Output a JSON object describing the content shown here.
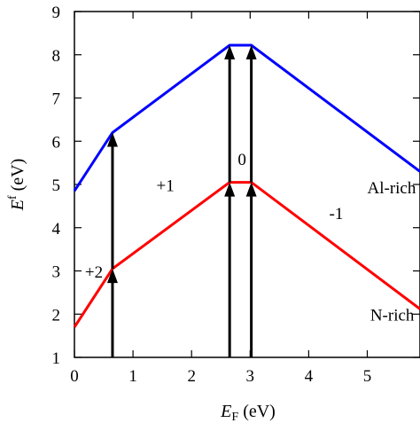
{
  "chart_data": {
    "type": "line",
    "xlabel_main": "E",
    "xlabel_sub": "F",
    "xlabel_unit": " (eV)",
    "ylabel_main": "E",
    "ylabel_sup": "f",
    "ylabel_unit": " (eV)",
    "xlim": [
      0,
      5.9
    ],
    "ylim": [
      1,
      9
    ],
    "xticks": [
      0,
      1,
      2,
      3,
      4,
      5
    ],
    "yticks": [
      1,
      2,
      3,
      4,
      5,
      6,
      7,
      8,
      9
    ],
    "grid": false,
    "series": [
      {
        "name": "Al-rich",
        "color": "#0000ff",
        "x": [
          0,
          0.65,
          2.65,
          3.02,
          5.9
        ],
        "y": [
          4.85,
          6.2,
          8.22,
          8.22,
          5.3
        ]
      },
      {
        "name": "N-rich",
        "color": "#ff0000",
        "x": [
          0,
          0.65,
          2.65,
          3.02,
          5.9
        ],
        "y": [
          1.7,
          3.05,
          5.05,
          5.05,
          2.12
        ]
      }
    ],
    "arrows": [
      {
        "x": 0.65,
        "y_from": 1,
        "y_to": 3.05
      },
      {
        "x": 0.65,
        "y_from": 3.05,
        "y_to": 6.2
      },
      {
        "x": 2.65,
        "y_from": 1,
        "y_to": 5.05
      },
      {
        "x": 2.65,
        "y_from": 5.05,
        "y_to": 8.22
      },
      {
        "x": 3.02,
        "y_from": 1,
        "y_to": 5.05
      },
      {
        "x": 3.02,
        "y_from": 5.05,
        "y_to": 8.22
      }
    ],
    "annotations": [
      {
        "text": "+2",
        "x": 0.18,
        "y": 2.85
      },
      {
        "text": "+1",
        "x": 1.4,
        "y": 4.85
      },
      {
        "text": "0",
        "x": 2.79,
        "y": 5.45
      },
      {
        "text": "-1",
        "x": 4.35,
        "y": 4.2
      },
      {
        "text": "Al-rich",
        "x": 5.0,
        "y": 4.8
      },
      {
        "text": "N-rich",
        "x": 5.05,
        "y": 1.85
      }
    ]
  }
}
